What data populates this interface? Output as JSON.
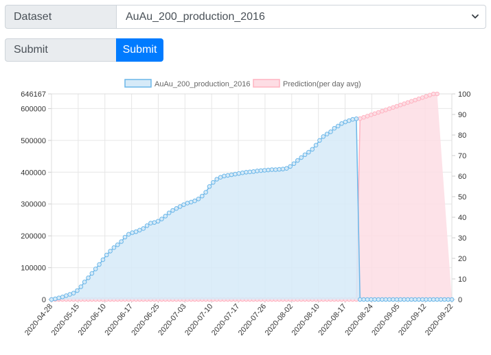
{
  "form": {
    "dataset_label": "Dataset",
    "dataset_value": "AuAu_200_production_2016",
    "submit_label": "Submit",
    "submit_button": "Submit"
  },
  "colors": {
    "accent": "#007bff",
    "series_line": "#6ab6e8",
    "series_fill": "#d6eaf8",
    "prediction_line": "#ffb3c1",
    "prediction_fill": "#fddde4"
  },
  "chart_data": {
    "type": "line",
    "legend": [
      "AuAu_200_production_2016",
      "Prediction(per day avg)"
    ],
    "legend_placement": "top",
    "x_ticks": [
      "2020-04-28",
      "2020-05-15",
      "2020-06-10",
      "2020-06-17",
      "2020-06-25",
      "2020-07-03",
      "2020-07-10",
      "2020-07-17",
      "2020-07-26",
      "2020-08-02",
      "2020-08-10",
      "2020-08-17",
      "2020-08-24",
      "2020-09-05",
      "2020-09-12",
      "2020-09-22"
    ],
    "y_left_ticks": [
      "0",
      "100000",
      "200000",
      "300000",
      "400000",
      "500000",
      "600000",
      "646167"
    ],
    "y_left_lim": [
      0,
      646167
    ],
    "y_right_ticks": [
      "0",
      "10",
      "20",
      "30",
      "40",
      "50",
      "60",
      "70",
      "80",
      "90",
      "100"
    ],
    "y_right_lim": [
      0,
      100
    ],
    "grid": true,
    "series": [
      {
        "name": "AuAu_200_production_2016",
        "axis": "left",
        "values": [
          0,
          2000,
          5000,
          8000,
          12000,
          16000,
          20000,
          28000,
          40000,
          55000,
          68000,
          82000,
          96000,
          110000,
          125000,
          140000,
          152000,
          163000,
          172000,
          182000,
          196000,
          205000,
          210000,
          213000,
          218000,
          223000,
          232000,
          240000,
          242000,
          246000,
          253000,
          262000,
          272000,
          280000,
          286000,
          292000,
          298000,
          303000,
          306000,
          310000,
          316000,
          325000,
          337000,
          355000,
          368000,
          378000,
          384000,
          388000,
          390000,
          392000,
          394000,
          396000,
          398000,
          400000,
          401000,
          402000,
          404000,
          405000,
          406000,
          407000,
          408000,
          408000,
          409000,
          410000,
          412000,
          418000,
          427000,
          437000,
          446000,
          455000,
          463000,
          472000,
          485000,
          500000,
          512000,
          520000,
          527000,
          538000,
          545000,
          553000,
          558000,
          562000,
          566000,
          568000,
          0,
          0,
          0,
          0,
          0,
          0,
          0,
          0,
          0,
          0,
          0,
          0,
          0,
          0,
          0,
          0,
          0,
          0,
          0,
          0,
          0,
          0,
          0,
          0,
          0,
          0
        ]
      },
      {
        "name": "Prediction(per day avg)",
        "axis": "right",
        "values": [
          0,
          0,
          0,
          0,
          0,
          0,
          0,
          0,
          0,
          0,
          0,
          0,
          0,
          0,
          0,
          0,
          0,
          0,
          0,
          0,
          0,
          0,
          0,
          0,
          0,
          0,
          0,
          0,
          0,
          0,
          0,
          0,
          0,
          0,
          0,
          0,
          0,
          0,
          0,
          0,
          0,
          0,
          0,
          0,
          0,
          0,
          0,
          0,
          0,
          0,
          0,
          0,
          0,
          0,
          0,
          0,
          0,
          0,
          0,
          0,
          0,
          0,
          0,
          0,
          0,
          0,
          0,
          0,
          0,
          0,
          0,
          0,
          0,
          0,
          0,
          0,
          0,
          0,
          0,
          0,
          0,
          0,
          0,
          0,
          88,
          88.6,
          89.2,
          89.8,
          90.4,
          91,
          91.6,
          92.2,
          92.8,
          93.4,
          94,
          94.6,
          95.2,
          95.8,
          96.4,
          97,
          97.6,
          98.2,
          98.8,
          99.4,
          100,
          100
        ]
      }
    ]
  }
}
